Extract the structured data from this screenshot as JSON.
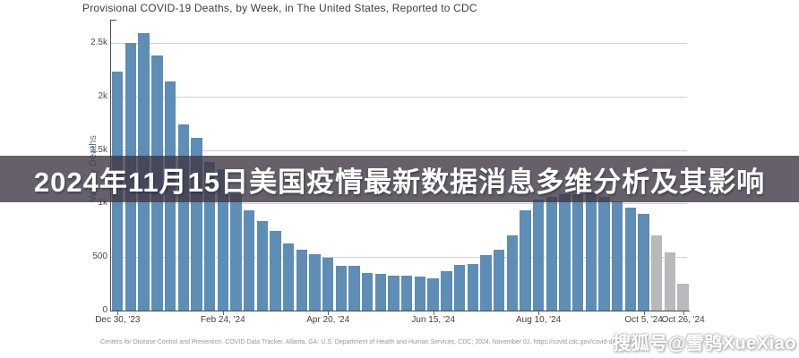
{
  "title": "Provisional COVID-19 Deaths, by Week, in The United States, Reported to CDC",
  "overlay_banner": {
    "text": "2024年11月15日美国疫情最新数据消息多维分析及其影响",
    "background_color": "rgba(62,56,69,0.80)",
    "text_color": "#ffffff"
  },
  "watermark": {
    "text": "搜狐号@雪鸮XueXiao"
  },
  "source_line": "Centers for Disease Control and Prevention. COVID Data Tracker. Atlanta, GA: U.S. Department of Health and Human Services, CDC; 2024, November 02. https://covid.cdc.gov/covid-data-tracker",
  "chart_data": {
    "type": "bar",
    "title": "Provisional COVID-19 Deaths, by Week, in The United States, Reported to CDC",
    "xlabel": "",
    "ylabel": "Weekly Deaths",
    "ylim": [
      0,
      2720
    ],
    "grid": true,
    "y_ticks": [
      {
        "value": 0,
        "label": "0"
      },
      {
        "value": 500,
        "label": "500"
      },
      {
        "value": 1000,
        "label": "1k"
      },
      {
        "value": 1500,
        "label": "1.5k"
      },
      {
        "value": 2000,
        "label": "2k"
      },
      {
        "value": 2500,
        "label": "2.5k"
      }
    ],
    "x_ticks": [
      {
        "week_index": 0,
        "label": "Dec 30, '23"
      },
      {
        "week_index": 8,
        "label": "Feb 24, '24"
      },
      {
        "week_index": 16,
        "label": "Apr 20, '24"
      },
      {
        "week_index": 24,
        "label": "Jun 15, '24"
      },
      {
        "week_index": 32,
        "label": "Aug 10, '24"
      },
      {
        "week_index": 40,
        "label": "Oct 5, '24"
      },
      {
        "week_index": 43,
        "label": "Oct 26, '24"
      }
    ],
    "values": [
      2230,
      2500,
      2590,
      2380,
      2140,
      1740,
      1610,
      1390,
      1320,
      1090,
      940,
      840,
      740,
      630,
      570,
      525,
      490,
      420,
      420,
      350,
      340,
      330,
      330,
      315,
      300,
      365,
      430,
      435,
      520,
      570,
      700,
      940,
      1040,
      1060,
      1090,
      1090,
      1100,
      1060,
      1020,
      960,
      900,
      700,
      540,
      250
    ],
    "provisional_last_n": 3,
    "colors": {
      "bar": "#5e8db6",
      "provisional_bar": "#b7b9bb",
      "gridline": "#cfcfcf",
      "axis": "#4a4a4a"
    },
    "legend": null
  },
  "layout_note": "weekly bars; last 3 bars shown gray (provisional/incomplete data)"
}
